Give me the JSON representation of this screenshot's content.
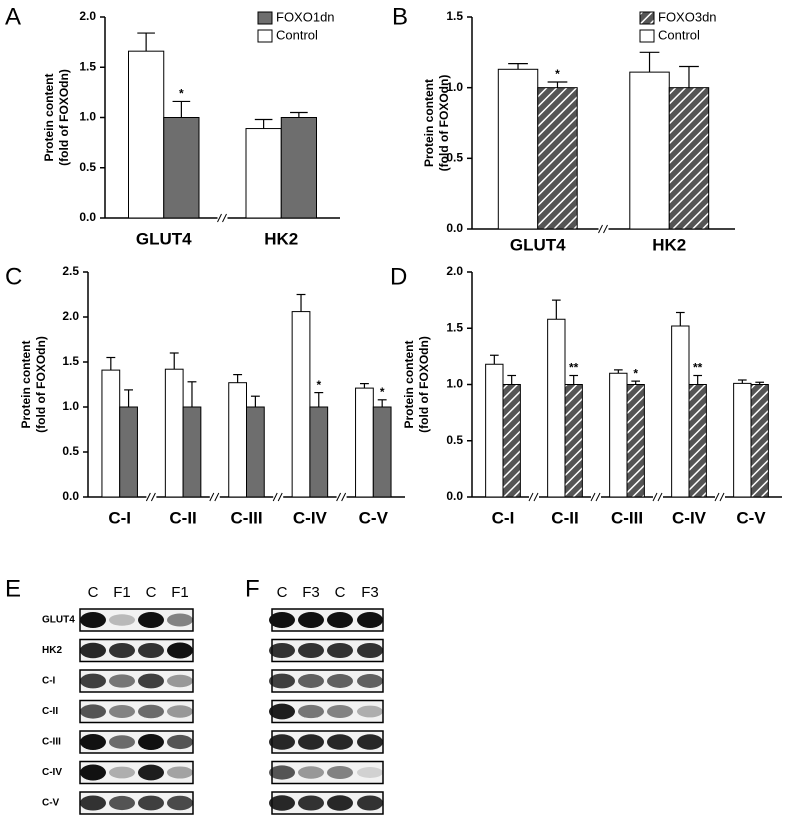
{
  "chart_data": [
    {
      "type": "bar",
      "panel": "A",
      "ylabel": [
        "Protein content",
        "(fold of FOXOdn)"
      ],
      "categories": [
        "GLUT4",
        "HK2"
      ],
      "series": [
        {
          "name": "Control",
          "color": "#ffffff",
          "values": [
            1.66,
            0.89
          ],
          "errors": [
            0.18,
            0.09
          ]
        },
        {
          "name": "FOXO1dn",
          "color": "#6e6e6e",
          "values": [
            1.0,
            1.0
          ],
          "errors": [
            0.16,
            0.05
          ],
          "annotations": [
            "*",
            null
          ]
        }
      ],
      "ylim": [
        0,
        2.0
      ],
      "yticks": [
        {
          "value": 0,
          "label": "0.0"
        },
        0.5,
        {
          "value": 1,
          "label": "1.0"
        },
        1.5,
        {
          "value": 2,
          "label": "2.0"
        }
      ],
      "legend": true
    },
    {
      "type": "bar",
      "panel": "B",
      "ylabel": [
        "Protein content",
        "(fold of FOXOdn)"
      ],
      "categories": [
        "GLUT4",
        "HK2"
      ],
      "series": [
        {
          "name": "Control",
          "color": "#ffffff",
          "values": [
            1.13,
            1.11
          ],
          "errors": [
            0.04,
            0.14
          ]
        },
        {
          "name": "FOXO3dn",
          "color": "#555555",
          "pattern": "hatch",
          "values": [
            1.0,
            1.0
          ],
          "errors": [
            0.04,
            0.15
          ],
          "annotations": [
            "*",
            null
          ]
        }
      ],
      "ylim": [
        0,
        1.5
      ],
      "yticks": [
        {
          "value": 0,
          "label": "0.0"
        },
        0.5,
        {
          "value": 1,
          "label": "1.0"
        },
        1.5
      ],
      "legend": true
    },
    {
      "type": "bar",
      "panel": "C",
      "ylabel": [
        "Protein content",
        "(fold of FOXOdn)"
      ],
      "categories": [
        "C-I",
        "C-II",
        "C-III",
        "C-IV",
        "C-V"
      ],
      "series": [
        {
          "name": "Control",
          "color": "#ffffff",
          "values": [
            1.41,
            1.42,
            1.27,
            2.06,
            1.21
          ],
          "errors": [
            0.14,
            0.18,
            0.09,
            0.19,
            0.05
          ]
        },
        {
          "name": "FOXO1dn",
          "color": "#6e6e6e",
          "values": [
            1,
            1,
            1,
            1,
            1
          ],
          "errors": [
            0.19,
            0.28,
            0.12,
            0.16,
            0.08
          ],
          "annotations": [
            null,
            null,
            null,
            "*",
            "*"
          ]
        }
      ],
      "ylim": [
        0,
        2.5
      ],
      "yticks": [
        {
          "value": 0,
          "label": "0.0"
        },
        0.5,
        {
          "value": 1,
          "label": "1.0"
        },
        1.5,
        {
          "value": 2,
          "label": "2.0"
        },
        2.5
      ],
      "legend": false
    },
    {
      "type": "bar",
      "panel": "D",
      "ylabel": [
        "Protein content",
        "(fold of FOXOdn)"
      ],
      "categories": [
        "C-I",
        "C-II",
        "C-III",
        "C-IV",
        "C-V"
      ],
      "series": [
        {
          "name": "Control",
          "color": "#ffffff",
          "values": [
            1.18,
            1.58,
            1.1,
            1.52,
            1.01
          ],
          "errors": [
            0.08,
            0.17,
            0.03,
            0.12,
            0.03
          ]
        },
        {
          "name": "FOXO3dn",
          "color": "#555555",
          "pattern": "hatch",
          "values": [
            1,
            1,
            1,
            1,
            1
          ],
          "errors": [
            0.08,
            0.08,
            0.03,
            0.08,
            0.02
          ],
          "annotations": [
            null,
            "**",
            "*",
            "**",
            null
          ]
        }
      ],
      "ylim": [
        0,
        2.0
      ],
      "yticks": [
        {
          "value": 0,
          "label": "0.0"
        },
        0.5,
        {
          "value": 1,
          "label": "1.0"
        },
        1.5,
        {
          "value": 2,
          "label": "2.0"
        }
      ],
      "legend": false
    }
  ],
  "blots": [
    {
      "panel": "E",
      "columns": [
        "C",
        "F1",
        "C",
        "F1"
      ],
      "rows": [
        "GLUT4",
        "HK2",
        "C-I",
        "C-II",
        "C-III",
        "C-IV",
        "C-V"
      ]
    },
    {
      "panel": "F",
      "columns": [
        "C",
        "F3",
        "C",
        "F3"
      ]
    }
  ]
}
